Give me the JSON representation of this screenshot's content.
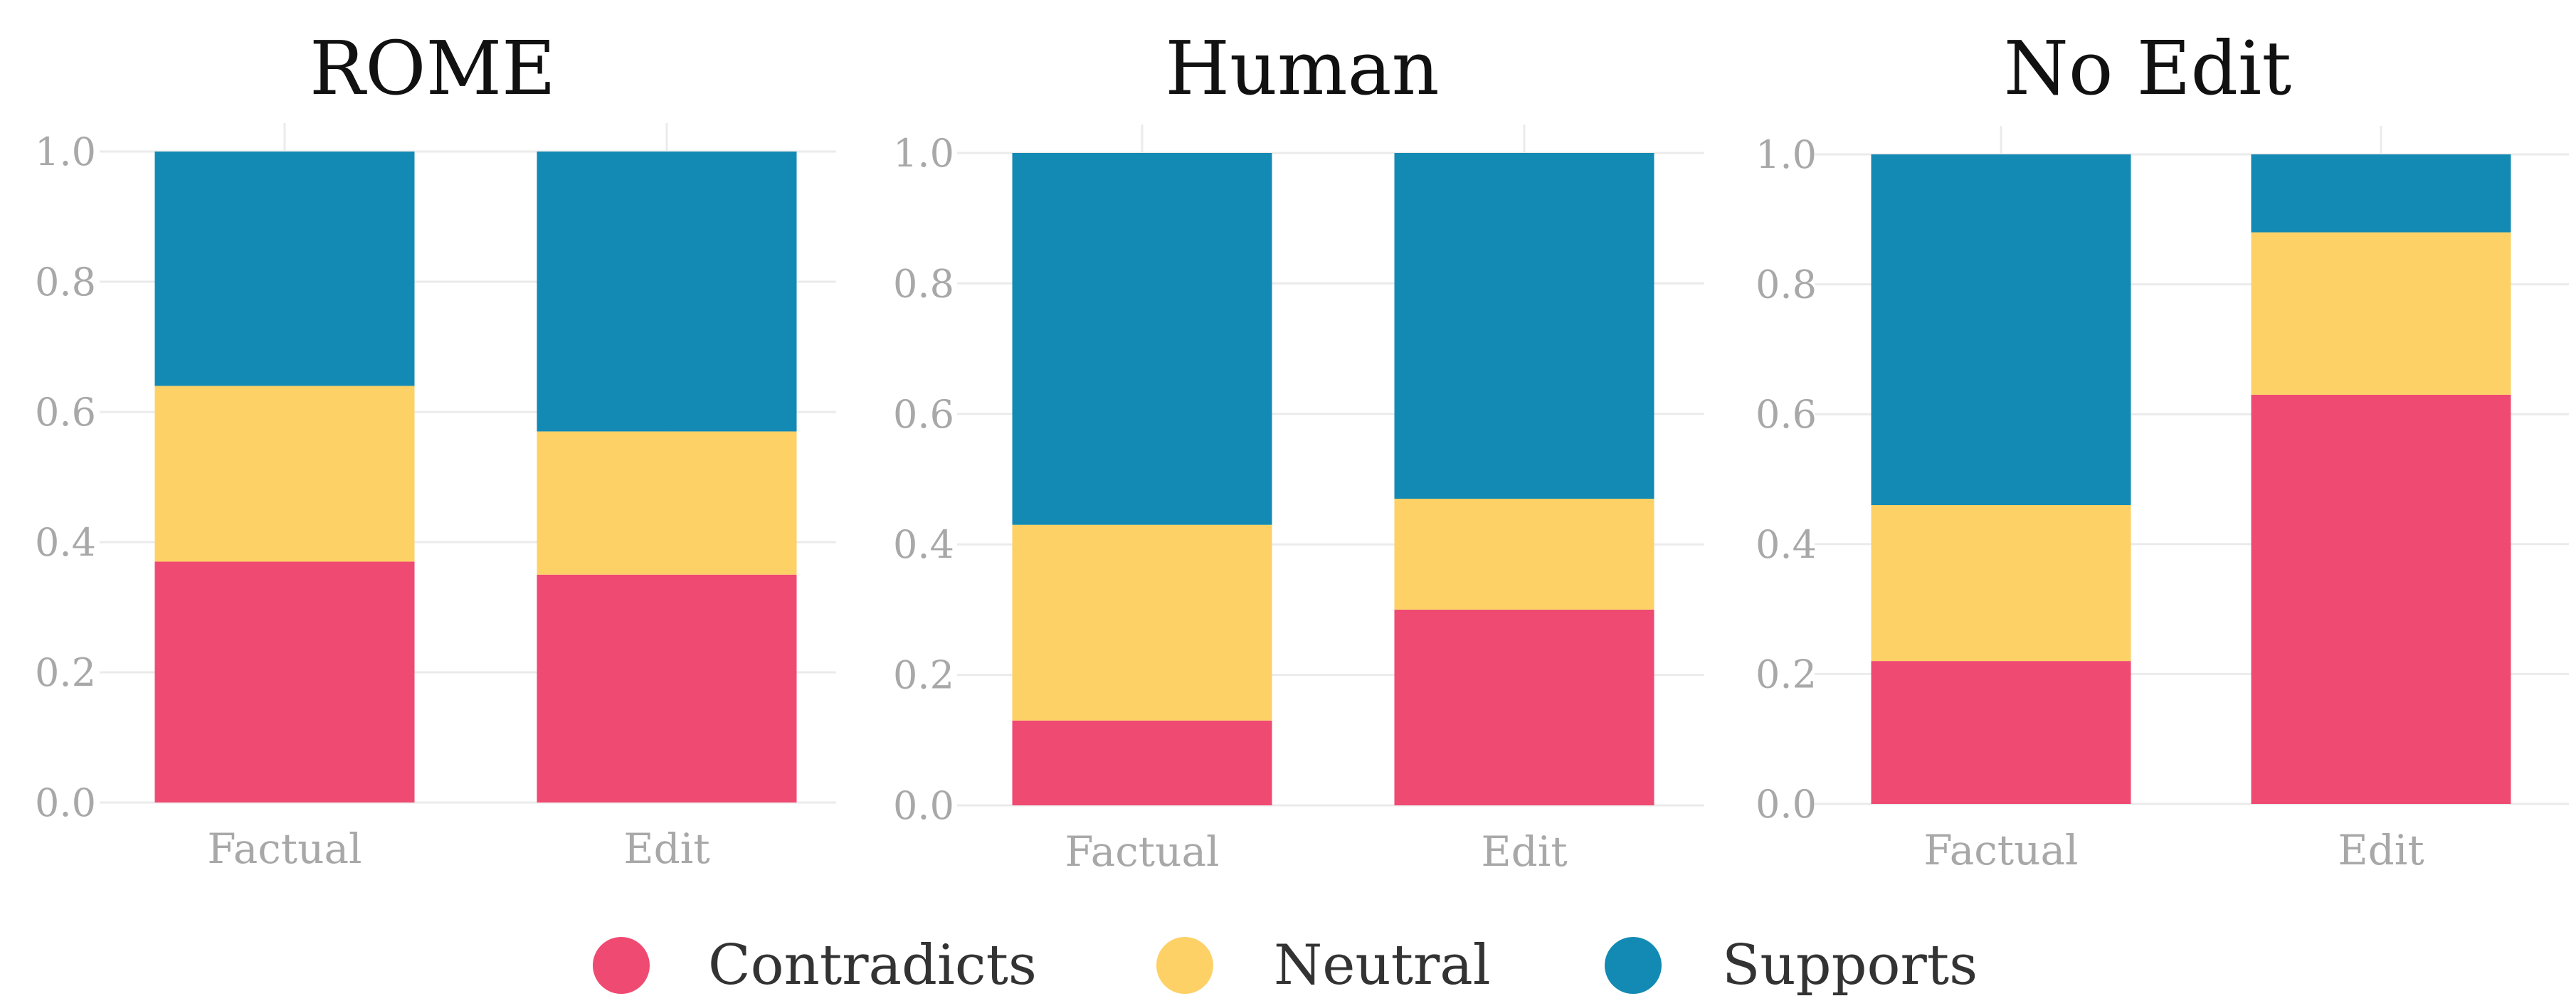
{
  "chart_data": {
    "type": "bar",
    "stacked": true,
    "categories": [
      "Factual",
      "Edit"
    ],
    "ylim": [
      0,
      1.0
    ],
    "yticks": [
      "0.0",
      "0.2",
      "0.4",
      "0.6",
      "0.8",
      "1.0"
    ],
    "grid": true,
    "legend_position": "bottom",
    "series_meta": [
      {
        "name": "Contradicts",
        "color": "#ef4a71"
      },
      {
        "name": "Neutral",
        "color": "#fdd166"
      },
      {
        "name": "Supports",
        "color": "#138ab3"
      }
    ],
    "panels": [
      {
        "title": "ROME",
        "series": [
          {
            "name": "Contradicts",
            "values": [
              0.37,
              0.35
            ]
          },
          {
            "name": "Neutral",
            "values": [
              0.27,
              0.22
            ]
          },
          {
            "name": "Supports",
            "values": [
              0.36,
              0.43
            ]
          }
        ]
      },
      {
        "title": "Human",
        "series": [
          {
            "name": "Contradicts",
            "values": [
              0.13,
              0.3
            ]
          },
          {
            "name": "Neutral",
            "values": [
              0.3,
              0.17
            ]
          },
          {
            "name": "Supports",
            "values": [
              0.57,
              0.53
            ]
          }
        ]
      },
      {
        "title": "No Edit",
        "series": [
          {
            "name": "Contradicts",
            "values": [
              0.22,
              0.63
            ]
          },
          {
            "name": "Neutral",
            "values": [
              0.24,
              0.25
            ]
          },
          {
            "name": "Supports",
            "values": [
              0.54,
              0.12
            ]
          }
        ]
      }
    ]
  }
}
